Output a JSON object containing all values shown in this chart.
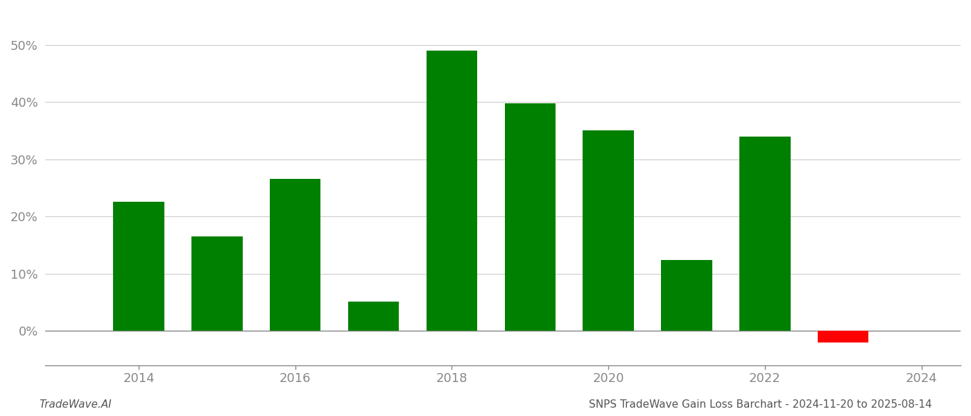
{
  "years": [
    2014,
    2015,
    2016,
    2017,
    2018,
    2019,
    2020,
    2021,
    2022,
    2023
  ],
  "values": [
    0.225,
    0.165,
    0.265,
    0.051,
    0.49,
    0.397,
    0.35,
    0.124,
    0.34,
    -0.02
  ],
  "bar_colors": [
    "#008000",
    "#008000",
    "#008000",
    "#008000",
    "#008000",
    "#008000",
    "#008000",
    "#008000",
    "#008000",
    "#ff0000"
  ],
  "yticks": [
    0.0,
    0.1,
    0.2,
    0.3,
    0.4,
    0.5
  ],
  "ytick_labels": [
    "0%",
    "10%",
    "20%",
    "30%",
    "40%",
    "50%"
  ],
  "xtick_positions": [
    2014,
    2016,
    2018,
    2020,
    2022,
    2024
  ],
  "xtick_labels": [
    "2014",
    "2016",
    "2018",
    "2020",
    "2022",
    "2024"
  ],
  "ylim": [
    -0.06,
    0.56
  ],
  "xlim": [
    2012.8,
    2024.5
  ],
  "grid_color": "#cccccc",
  "background_color": "#ffffff",
  "footer_left": "TradeWave.AI",
  "footer_right": "SNPS TradeWave Gain Loss Barchart - 2024-11-20 to 2025-08-14",
  "footer_fontsize": 11,
  "bar_width": 0.65,
  "spine_color": "#888888",
  "tick_color": "#888888",
  "label_color": "#888888"
}
